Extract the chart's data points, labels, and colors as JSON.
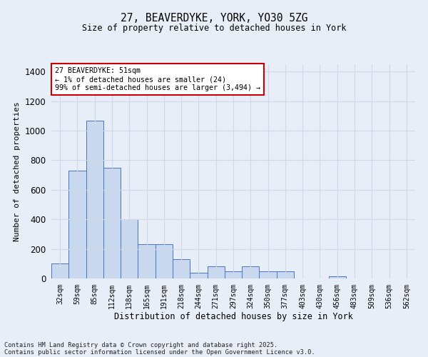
{
  "title_line1": "27, BEAVERDYKE, YORK, YO30 5ZG",
  "title_line2": "Size of property relative to detached houses in York",
  "xlabel": "Distribution of detached houses by size in York",
  "ylabel": "Number of detached properties",
  "categories": [
    "32sqm",
    "59sqm",
    "85sqm",
    "112sqm",
    "138sqm",
    "165sqm",
    "191sqm",
    "218sqm",
    "244sqm",
    "271sqm",
    "297sqm",
    "324sqm",
    "350sqm",
    "377sqm",
    "403sqm",
    "430sqm",
    "456sqm",
    "483sqm",
    "509sqm",
    "536sqm",
    "562sqm"
  ],
  "values": [
    100,
    730,
    1070,
    750,
    400,
    230,
    230,
    130,
    40,
    80,
    50,
    80,
    50,
    50,
    0,
    0,
    15,
    0,
    0,
    0,
    0
  ],
  "bar_color": "#c8d8ee",
  "bar_edge_color": "#4a72c4",
  "annotation_text": "27 BEAVERDYKE: 51sqm\n← 1% of detached houses are smaller (24)\n99% of semi-detached houses are larger (3,494) →",
  "annotation_box_facecolor": "#ffffff",
  "annotation_box_edgecolor": "#cc0000",
  "ylim": [
    0,
    1450
  ],
  "yticks": [
    0,
    200,
    400,
    600,
    800,
    1000,
    1200,
    1400
  ],
  "grid_color": "#d0d8e8",
  "bg_color": "#e8eef8",
  "footer_line1": "Contains HM Land Registry data © Crown copyright and database right 2025.",
  "footer_line2": "Contains public sector information licensed under the Open Government Licence v3.0."
}
